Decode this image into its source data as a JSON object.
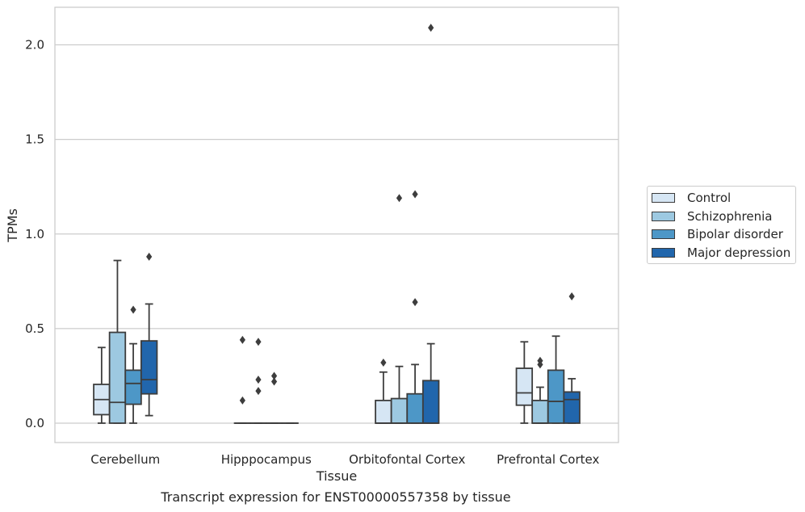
{
  "chart_data": {
    "type": "box",
    "caption": "Transcript expression for ENST00000557358 by tissue",
    "xlabel": "Tissue",
    "ylabel": "TPMs",
    "ylim": [
      -0.1,
      2.2
    ],
    "yticks": [
      0.0,
      0.5,
      1.0,
      1.5,
      2.0
    ],
    "ytick_labels": [
      "0.0",
      "0.5",
      "1.0",
      "1.5",
      "2.0"
    ],
    "grid": "horizontal",
    "legend_position": "right",
    "categories": [
      "Cerebellum",
      "Hipppocampus",
      "Orbitofontal Cortex",
      "Prefrontal Cortex"
    ],
    "series": [
      {
        "name": "Control",
        "color": "#d6e6f4",
        "boxes": [
          {
            "whislo": 0.0,
            "q1": 0.045,
            "med": 0.125,
            "q3": 0.205,
            "whishi": 0.4,
            "fliers": []
          },
          {
            "whislo": 0.0,
            "q1": 0.0,
            "med": 0.0,
            "q3": 0.0,
            "whishi": 0.0,
            "fliers": [
              0.44,
              0.12
            ]
          },
          {
            "whislo": 0.0,
            "q1": 0.0,
            "med": 0.0,
            "q3": 0.12,
            "whishi": 0.27,
            "fliers": [
              0.32
            ]
          },
          {
            "whislo": 0.0,
            "q1": 0.095,
            "med": 0.16,
            "q3": 0.29,
            "whishi": 0.43,
            "fliers": []
          }
        ]
      },
      {
        "name": "Schizophrenia",
        "color": "#9dc9e1",
        "boxes": [
          {
            "whislo": 0.0,
            "q1": 0.0,
            "med": 0.11,
            "q3": 0.48,
            "whishi": 0.86,
            "fliers": []
          },
          {
            "whislo": 0.0,
            "q1": 0.0,
            "med": 0.0,
            "q3": 0.0,
            "whishi": 0.0,
            "fliers": [
              0.43,
              0.17,
              0.23
            ]
          },
          {
            "whislo": 0.0,
            "q1": 0.0,
            "med": 0.0,
            "q3": 0.13,
            "whishi": 0.3,
            "fliers": [
              1.19
            ]
          },
          {
            "whislo": 0.0,
            "q1": 0.0,
            "med": 0.0,
            "q3": 0.12,
            "whishi": 0.19,
            "fliers": [
              0.33,
              0.31
            ]
          }
        ]
      },
      {
        "name": "Bipolar disorder",
        "color": "#4d97c7",
        "boxes": [
          {
            "whislo": 0.0,
            "q1": 0.1,
            "med": 0.21,
            "q3": 0.28,
            "whishi": 0.42,
            "fliers": [
              0.6
            ]
          },
          {
            "whislo": 0.0,
            "q1": 0.0,
            "med": 0.0,
            "q3": 0.0,
            "whishi": 0.0,
            "fliers": [
              0.25,
              0.22
            ]
          },
          {
            "whislo": 0.0,
            "q1": 0.0,
            "med": 0.0,
            "q3": 0.155,
            "whishi": 0.31,
            "fliers": [
              1.21,
              0.64
            ]
          },
          {
            "whislo": 0.0,
            "q1": 0.0,
            "med": 0.115,
            "q3": 0.28,
            "whishi": 0.46,
            "fliers": []
          }
        ]
      },
      {
        "name": "Major depression",
        "color": "#2166ac",
        "boxes": [
          {
            "whislo": 0.04,
            "q1": 0.155,
            "med": 0.23,
            "q3": 0.435,
            "whishi": 0.63,
            "fliers": [
              0.88
            ]
          },
          {
            "whislo": 0.0,
            "q1": 0.0,
            "med": 0.0,
            "q3": 0.0,
            "whishi": 0.0,
            "fliers": []
          },
          {
            "whislo": 0.0,
            "q1": 0.0,
            "med": 0.0,
            "q3": 0.225,
            "whishi": 0.42,
            "fliers": [
              2.09
            ]
          },
          {
            "whislo": 0.0,
            "q1": 0.0,
            "med": 0.125,
            "q3": 0.165,
            "whishi": 0.235,
            "fliers": [
              0.67
            ]
          }
        ]
      }
    ]
  }
}
